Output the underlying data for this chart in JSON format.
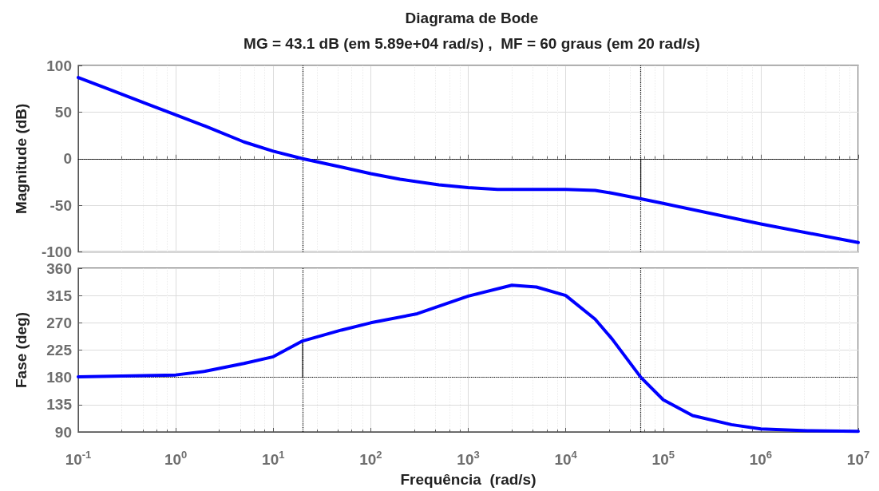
{
  "chart_data": [
    {
      "type": "line",
      "title": "Diagrama de Bode",
      "subtitle": "MG = 43.1 dB (em 5.89e+04 rad/s) ,  MF = 60 graus (em 20 rad/s)",
      "ylabel": "Magnitude (dB)",
      "log": "x",
      "grid": true,
      "tick_labels": "y",
      "marker": "none",
      "line_style": "solid",
      "xlim": [
        0.1,
        10000000
      ],
      "xticks": [
        {
          "value": 0.1,
          "label": null
        },
        {
          "value": 1,
          "label": null
        },
        {
          "value": 10,
          "label": null
        },
        {
          "value": 100,
          "label": null
        },
        {
          "value": 1000,
          "label": null
        },
        {
          "value": 10000,
          "label": null
        },
        {
          "value": 100000,
          "label": null
        },
        {
          "value": 1000000,
          "label": null
        },
        {
          "value": 10000000,
          "label": null
        }
      ],
      "ylim": [
        -100,
        100
      ],
      "yticks": [
        -100,
        -50,
        0,
        50,
        100
      ],
      "series": [
        {
          "color": "#0000ff",
          "x": [
            0.1,
            0.2,
            0.5,
            1,
            2,
            5,
            10,
            20,
            50,
            100,
            200,
            500,
            1000,
            2000,
            5000,
            10000,
            20000,
            30000,
            58900,
            100000,
            1000000,
            10000000
          ],
          "values": [
            87,
            75,
            59,
            47,
            35,
            18,
            8,
            0,
            -9,
            -16,
            -22,
            -28,
            -31,
            -33,
            -33,
            -33,
            -34,
            -37,
            -43,
            -48,
            -70,
            -90
          ]
        },
        {
          "color": "#000000",
          "x": [
            58900,
            58900
          ],
          "values": [
            0,
            -43
          ]
        }
      ],
      "ref_lines": [
        {
          "axis": "y",
          "value": 0,
          "color": "#000000",
          "line_style": "dotted"
        },
        {
          "axis": "x",
          "value": 20,
          "color": "#000000",
          "line_style": "dotted"
        },
        {
          "axis": "x",
          "value": 58900,
          "color": "#000000",
          "line_style": "dotted"
        }
      ]
    },
    {
      "type": "line",
      "xlabel": "Frequência  (rad/s)",
      "ylabel": "Fase (deg)",
      "log": "x",
      "grid": true,
      "marker": "none",
      "line_style": "solid",
      "xlim": [
        0.1,
        10000000
      ],
      "xticks": [
        {
          "value": 0.1,
          "label": "10$^{-1}$"
        },
        {
          "value": 1,
          "label": "10$^{0}$"
        },
        {
          "value": 10,
          "label": "10$^{1}$"
        },
        {
          "value": 100,
          "label": "10$^{2}$"
        },
        {
          "value": 1000,
          "label": "10$^{3}$"
        },
        {
          "value": 10000,
          "label": "10$^{4}$"
        },
        {
          "value": 100000,
          "label": "10$^{5}$"
        },
        {
          "value": 1000000,
          "label": "10$^{6}$"
        },
        {
          "value": 10000000,
          "label": "10$^{7}$"
        }
      ],
      "ylim": [
        90,
        360
      ],
      "yticks": [
        90,
        135,
        180,
        225,
        270,
        315,
        360
      ],
      "series": [
        {
          "color": "#0000ff",
          "x": [
            0.1,
            1,
            2,
            5,
            10,
            20,
            50,
            100,
            300,
            1000,
            2800,
            5000,
            10000,
            20000,
            30000,
            58900,
            100000,
            200000,
            500000,
            1000000,
            3000000,
            10000000
          ],
          "values": [
            181,
            184,
            190,
            203,
            214,
            240,
            258,
            270,
            285,
            314,
            332,
            329,
            315,
            276,
            243,
            180,
            143,
            117,
            102,
            95,
            92,
            91
          ]
        },
        {
          "color": "#000000",
          "x": [
            20,
            20
          ],
          "values": [
            180,
            240
          ]
        }
      ],
      "ref_lines": [
        {
          "axis": "y",
          "value": 180,
          "color": "#000000",
          "line_style": "dotted"
        },
        {
          "axis": "x",
          "value": 20,
          "color": "#000000",
          "line_style": "dotted"
        },
        {
          "axis": "x",
          "value": 58900,
          "color": "#000000",
          "line_style": "dotted"
        }
      ]
    }
  ]
}
